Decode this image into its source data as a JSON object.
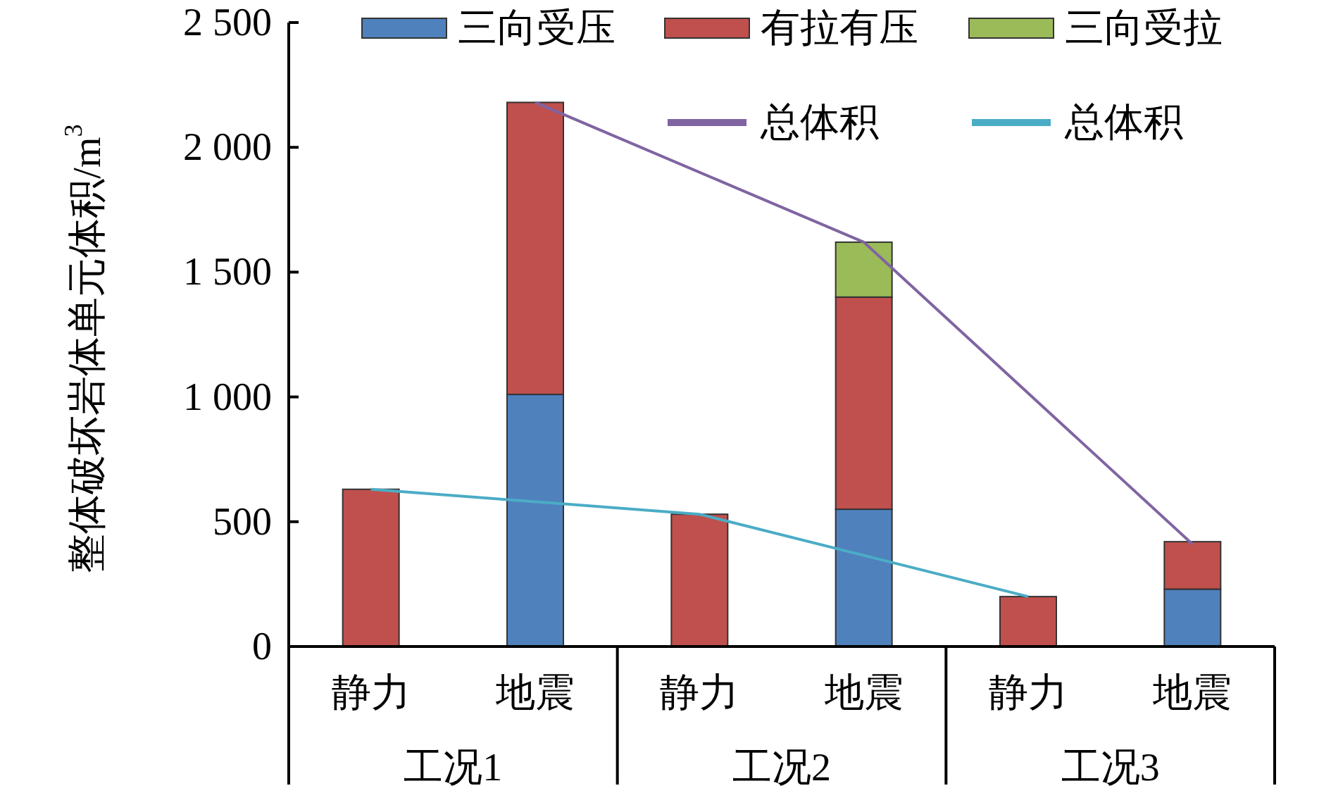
{
  "chart_data": {
    "type": "bar",
    "stacked": true,
    "ylabel": "整体破坏岩体单元体积/m$^{3}$",
    "categories": [
      "静力",
      "地震",
      "静力",
      "地震",
      "静力",
      "地震"
    ],
    "annotations": [
      "工况1",
      "工况2",
      "工况3"
    ],
    "series": [
      {
        "name": "三向受压",
        "color": "#4f81bd",
        "values": [
          0,
          1010,
          0,
          550,
          0,
          230
        ]
      },
      {
        "name": "有拉有压",
        "color": "#c0504d",
        "values": [
          630,
          1170,
          530,
          850,
          200,
          190
        ]
      },
      {
        "name": "三向受拉",
        "color": "#9bbb59",
        "values": [
          0,
          0,
          0,
          220,
          0,
          0
        ]
      },
      {
        "name": "总体积",
        "type": "line",
        "color": "#8064a2",
        "values": [
          null,
          2180,
          null,
          1620,
          null,
          410
        ]
      },
      {
        "name": "总体积",
        "type": "line",
        "color": "#4bacc6",
        "values": [
          630,
          null,
          530,
          null,
          200,
          null
        ]
      }
    ],
    "ylim": [
      0,
      2500
    ],
    "yticks": [
      0,
      500,
      {
        "value": 1000,
        "label": "1 000"
      },
      {
        "value": 1500,
        "label": "1 500"
      },
      {
        "value": 2000,
        "label": "2 000"
      },
      {
        "value": 2500,
        "label": "2 500"
      }
    ],
    "legend": "top"
  }
}
